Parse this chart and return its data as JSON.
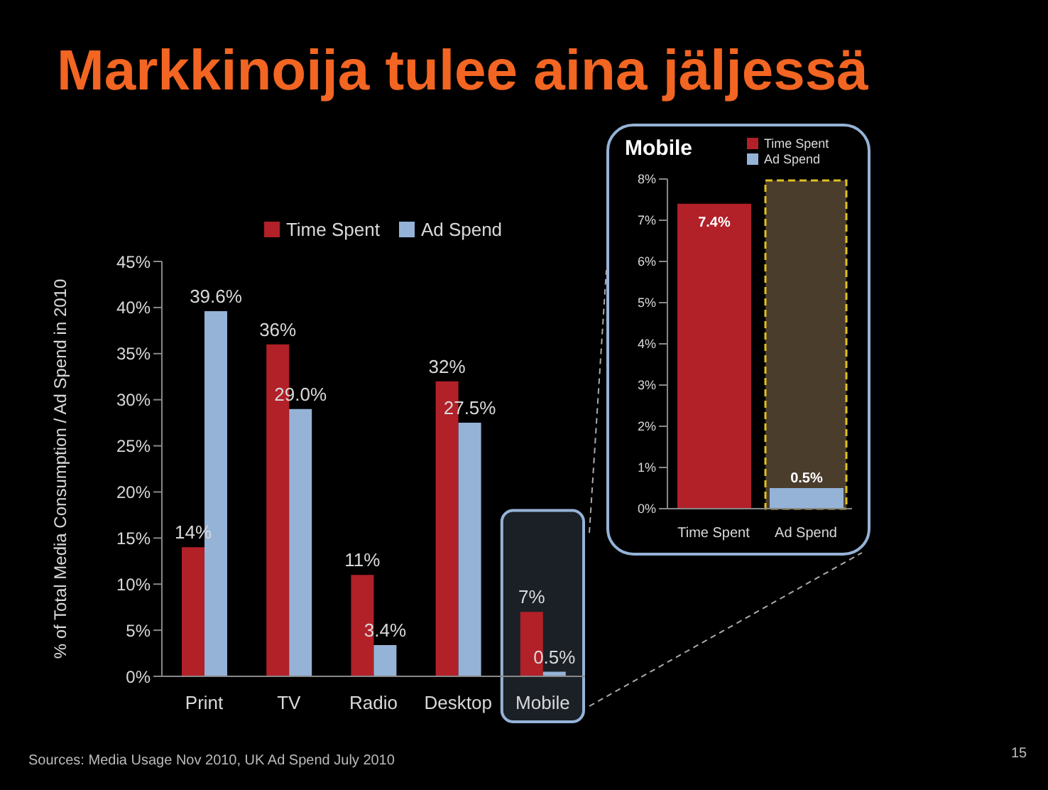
{
  "chart_data": [
    {
      "type": "bar",
      "title": "Markkinoija tulee aina jäljessä",
      "ylabel": "% of Total Media Consumption / Ad Spend in 2010",
      "categories": [
        "Print",
        "TV",
        "Radio",
        "Desktop",
        "Mobile"
      ],
      "series": [
        {
          "name": "Time Spent",
          "color": "#b22028",
          "values": [
            14,
            36,
            11,
            32,
            7
          ],
          "value_labels": [
            "14%",
            "36%",
            "11%",
            "32%",
            "7%"
          ]
        },
        {
          "name": "Ad Spend",
          "color": "#95b3d7",
          "values": [
            39.6,
            29.0,
            3.4,
            27.5,
            0.5
          ],
          "value_labels": [
            "39.6%",
            "29.0%",
            "3.4%",
            "27.5%",
            "0.5%"
          ]
        }
      ],
      "ylim": [
        0,
        45
      ],
      "yticks": [
        {
          "value": 0,
          "label": "0%"
        },
        {
          "value": 5,
          "label": "5%"
        },
        {
          "value": 10,
          "label": "10%"
        },
        {
          "value": 15,
          "label": "15%"
        },
        {
          "value": 20,
          "label": "20%"
        },
        {
          "value": 25,
          "label": "25%"
        },
        {
          "value": 30,
          "label": "30%"
        },
        {
          "value": 35,
          "label": "35%"
        },
        {
          "value": 40,
          "label": "40%"
        },
        {
          "value": 45,
          "label": "45%"
        }
      ],
      "grid": false,
      "legend": "top",
      "bands": [
        {
          "axis": "x",
          "from": "Mobile",
          "to": "Mobile",
          "color": "#95b3d7"
        }
      ],
      "annotations": [
        "Sources: Media Usage Nov 2010, UK Ad Spend July 2010",
        "15"
      ]
    },
    {
      "type": "bar",
      "title": "Mobile",
      "categories": [
        "Time Spent",
        "Ad Spend"
      ],
      "stacked": true,
      "series": [
        {
          "name": "Time Spent",
          "color": "#b22028",
          "values": [
            7.4,
            null
          ],
          "value_labels": [
            "7.4%",
            null
          ]
        },
        {
          "name": "Ad Spend",
          "color": "#95b3d7",
          "values": [
            null,
            0.5
          ],
          "value_labels": [
            null,
            "0.5%"
          ]
        }
      ],
      "ylim": [
        0,
        8
      ],
      "yticks": [
        {
          "value": 0,
          "label": "0%"
        },
        {
          "value": 1,
          "label": "1%"
        },
        {
          "value": 2,
          "label": "2%"
        },
        {
          "value": 3,
          "label": "3%"
        },
        {
          "value": 4,
          "label": "4%"
        },
        {
          "value": 5,
          "label": "5%"
        },
        {
          "value": 6,
          "label": "6%"
        },
        {
          "value": 7,
          "label": "7%"
        },
        {
          "value": 8,
          "label": "8%"
        }
      ],
      "grid": false,
      "legend": "top right",
      "bands": [
        {
          "axis": "x",
          "from": "Ad Spend",
          "to": "Ad Spend",
          "color": "#4a3d2c"
        }
      ]
    }
  ]
}
